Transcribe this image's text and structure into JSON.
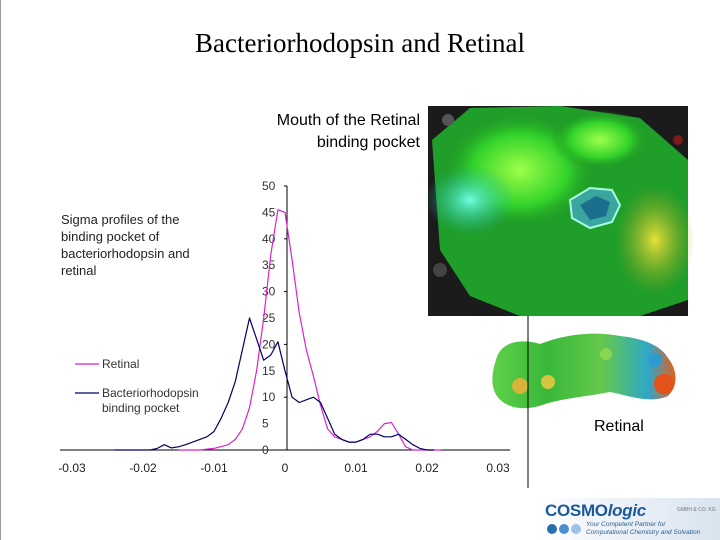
{
  "slide": {
    "title": "Bacteriorhodopsin and Retinal",
    "mouth_label_lines": [
      "Mouth of the Retinal",
      "binding pocket"
    ],
    "sigma_label": "Sigma profiles of the binding pocket of bacteriorhodopsin and retinal",
    "retinal_label": "Retinal"
  },
  "logo": {
    "name_part1": "COSMO",
    "name_part2": "logic",
    "gmbh": "GMBH & CO. KG",
    "tagline1": "Your Competent Partner for",
    "tagline2": "Computational Chemistry and Solvation"
  },
  "colors": {
    "retinal_series": "#dd22cc",
    "pocket_series": "#000066",
    "axis": "#000000"
  },
  "chart_data": {
    "type": "line",
    "xlim": [
      -0.03,
      0.03
    ],
    "ylim": [
      0,
      50
    ],
    "x_ticks": [
      "-0.03",
      "-0.02",
      "-0.01",
      "0",
      "0.01",
      "0.02",
      "0.03"
    ],
    "y_ticks": [
      "0",
      "5",
      "10",
      "15",
      "20",
      "25",
      "30",
      "35",
      "40",
      "45",
      "50"
    ],
    "legend_placement": "left",
    "series": [
      {
        "name": "Retinal",
        "color": "#dd22cc",
        "x": [
          -0.015,
          -0.012,
          -0.01,
          -0.008,
          -0.007,
          -0.006,
          -0.005,
          -0.004,
          -0.003,
          -0.002,
          -0.001,
          0,
          0.001,
          0.002,
          0.003,
          0.004,
          0.005,
          0.006,
          0.007,
          0.008,
          0.009,
          0.01,
          0.011,
          0.012,
          0.013,
          0.014,
          0.015,
          0.016,
          0.017,
          0.018,
          0.019,
          0.02,
          0.022
        ],
        "values": [
          0,
          0,
          0.3,
          1,
          2,
          4,
          8,
          15,
          25,
          37,
          45.5,
          45,
          36,
          26,
          19,
          14,
          8.5,
          4,
          2.5,
          2,
          1.5,
          1.5,
          2,
          2.5,
          3.5,
          5,
          5.2,
          3,
          0.6,
          0,
          0,
          0,
          0
        ]
      },
      {
        "name": "Bacteriorhodopsin binding pocket",
        "color": "#000066",
        "x": [
          -0.024,
          -0.022,
          -0.021,
          -0.02,
          -0.019,
          -0.018,
          -0.017,
          -0.016,
          -0.015,
          -0.014,
          -0.013,
          -0.012,
          -0.011,
          -0.01,
          -0.009,
          -0.008,
          -0.007,
          -0.006,
          -0.005,
          -0.004,
          -0.003,
          -0.002,
          -0.001,
          0,
          0.001,
          0.002,
          0.003,
          0.004,
          0.005,
          0.006,
          0.007,
          0.008,
          0.009,
          0.01,
          0.011,
          0.012,
          0.013,
          0.014,
          0.015,
          0.016,
          0.017,
          0.018,
          0.019,
          0.02,
          0.021
        ],
        "values": [
          0,
          0,
          0,
          0,
          0,
          0.3,
          1,
          0.4,
          0.6,
          1,
          1.5,
          2,
          2.5,
          3.5,
          6,
          9,
          13,
          19,
          25,
          21,
          17,
          18,
          20.5,
          15,
          10,
          9,
          9.5,
          10,
          9,
          6,
          3,
          2,
          1.5,
          1.5,
          2,
          3,
          3,
          2.5,
          2.5,
          3,
          2,
          1,
          0.3,
          0,
          0
        ]
      }
    ]
  }
}
